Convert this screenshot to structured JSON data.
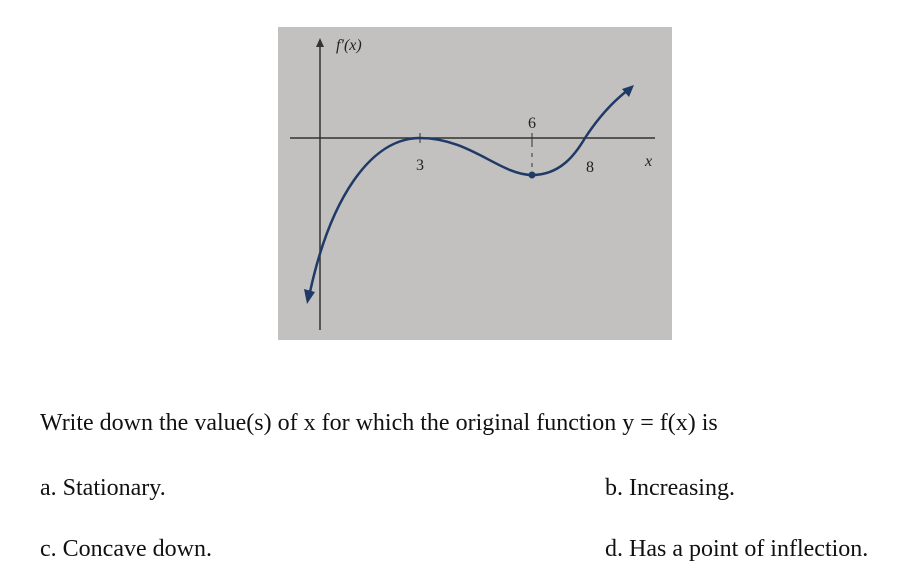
{
  "figure": {
    "y_label": "f′(x)",
    "x_label": "x",
    "tick_labels": [
      "3",
      "6",
      "8"
    ]
  },
  "question": {
    "text": "Write down the value(s) of x for which the original function y = f(x) is",
    "parts": [
      "a. Stationary.",
      "b. Increasing.",
      "c. Concave down.",
      "d. Has a point of inflection."
    ]
  }
}
